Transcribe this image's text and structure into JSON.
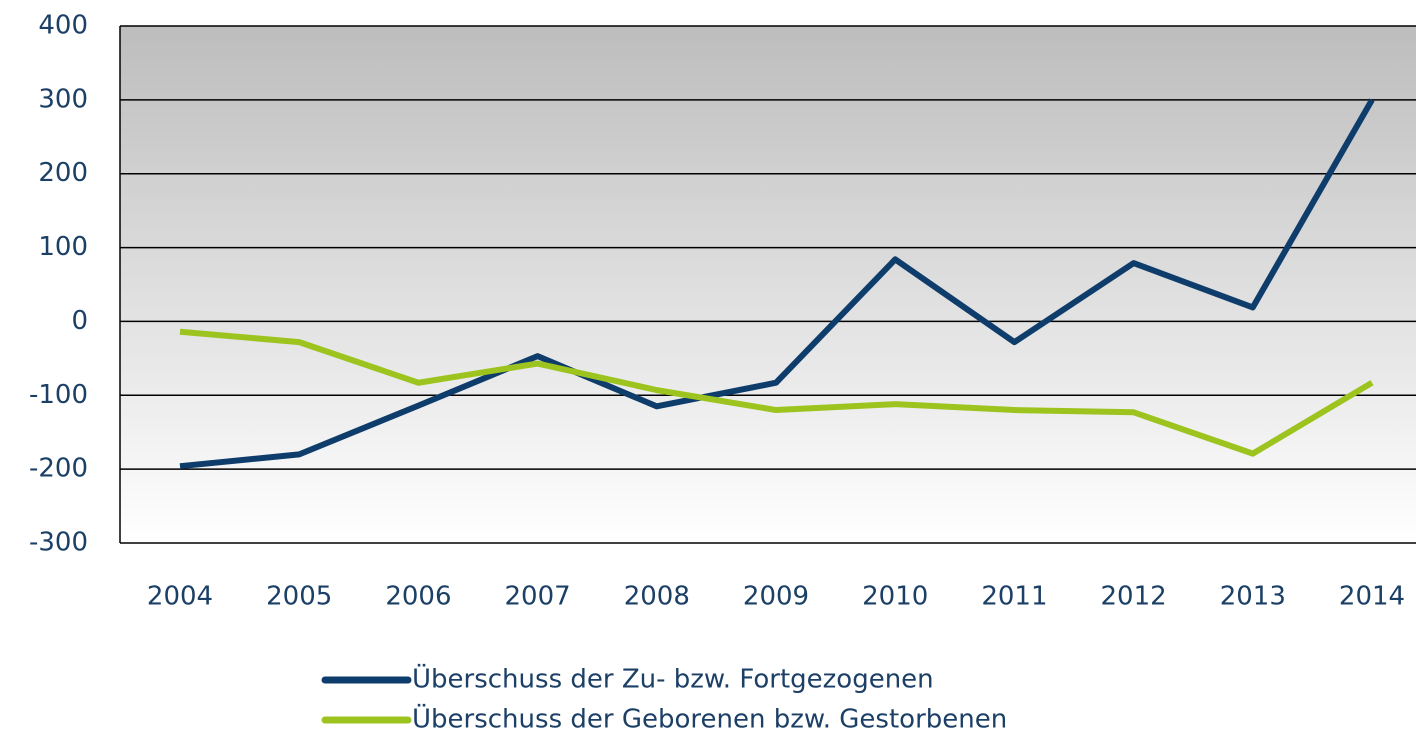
{
  "chart_data": {
    "type": "line",
    "categories": [
      "2004",
      "2005",
      "2006",
      "2007",
      "2008",
      "2009",
      "2010",
      "2011",
      "2012",
      "2013",
      "2014"
    ],
    "series": [
      {
        "name": "Überschuss der Zu- bzw. Fortgezogenen",
        "color": "#0e3d6c",
        "values": [
          -196,
          -180,
          -114,
          -47,
          -115,
          -83,
          84,
          -28,
          79,
          19,
          300
        ]
      },
      {
        "name": "Überschuss der Geborenen bzw. Gestorbenen",
        "color": "#9dc41e",
        "values": [
          -14,
          -28,
          -83,
          -57,
          -93,
          -120,
          -112,
          -120,
          -123,
          -179,
          -83
        ]
      }
    ],
    "ylim": [
      -300,
      400
    ],
    "yticks": [
      -300,
      -200,
      -100,
      0,
      100,
      200,
      300,
      400
    ],
    "grid": true
  }
}
